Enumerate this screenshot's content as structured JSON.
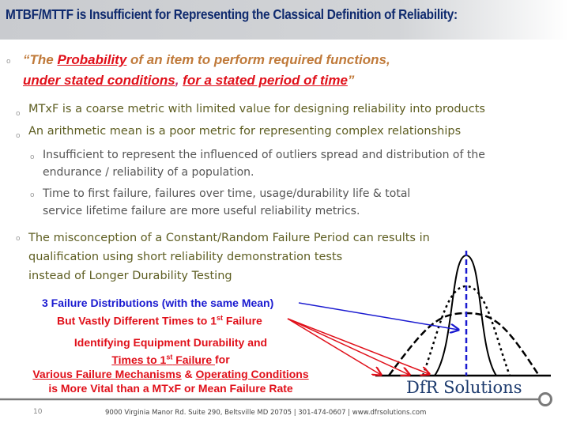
{
  "header": {
    "title": "MTBF/MTTF is Insufficient for Representing the Classical Definition of Reliability:"
  },
  "quote": {
    "open": "“The ",
    "probability": "Probability",
    "mid": " of an item to perform required functions,",
    "conditions": "under stated conditions",
    "comma": ",",
    "period": "for a stated period of time",
    "close": "”"
  },
  "bullets": [
    "MTxF is a coarse metric with limited value for designing reliability into products",
    "An arithmetic mean is a poor metric for representing complex relationships",
    "The misconception of a Constant/Random Failure Period can results in",
    "qualification using short reliability demonstration tests",
    "instead of Longer Durability Testing"
  ],
  "sub_bullets": [
    [
      "Insufficient to represent the influenced of outliers spread and distribution of the",
      "endurance / reliability of a population."
    ],
    [
      "Time to first failure, failures over time, usage/durability life & total",
      "service lifetime failure are more useful reliability metrics."
    ]
  ],
  "annotations": {
    "distributions": "3 Failure Distributions (with the same Mean)",
    "different_a": "But Vastly Different Times to 1",
    "sup": "st",
    "different_b": " Failure",
    "identify1": "Identifying Equipment Durability and",
    "identify2a": "Times to 1",
    "identify2b": " Failure ",
    "identify2c": "for",
    "identify3a": "Various Failure Mechanisms",
    "identify3b": " & ",
    "identify3c": "Operating Conditions",
    "identify4": "is More Vital than a MTxF or Mean Failure Rate"
  },
  "footer": {
    "page": "10",
    "address": "9000 Virginia Manor Rd. Suite 290, Beltsville MD 20705 | 301-474-0607 | www.dfrsolutions.com",
    "logo": "DfR Solutions"
  },
  "colors": {
    "title": "#0f2a6e",
    "accent_red": "#e0101a",
    "blue": "#1a1ad0"
  }
}
